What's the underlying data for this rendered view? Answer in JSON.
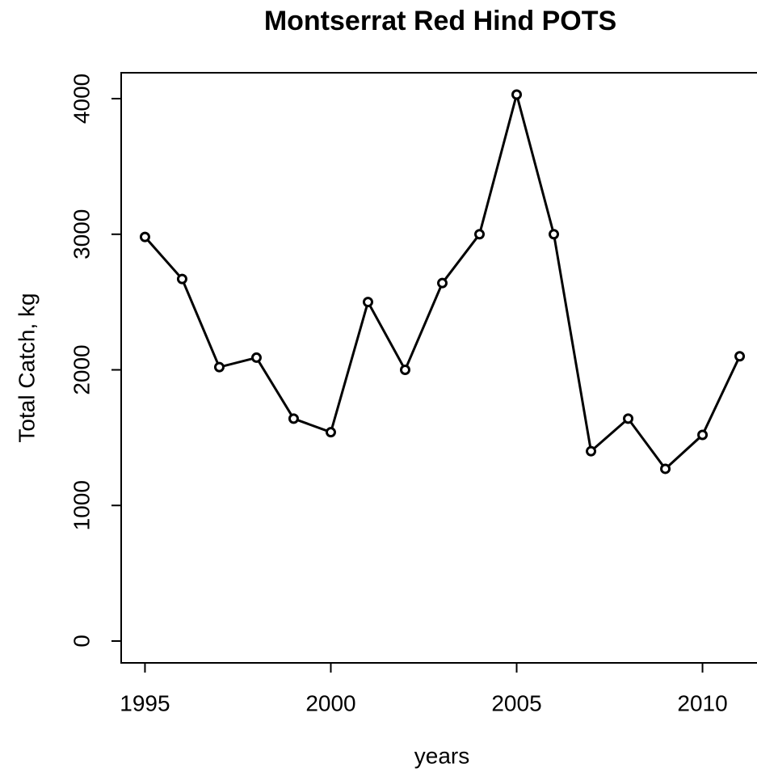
{
  "chart_data": {
    "type": "line",
    "title": "Montserrat Red Hind POTS",
    "x_label": "years",
    "y_label": "Total Catch, kg",
    "x": [
      1995,
      1996,
      1997,
      1998,
      1999,
      2000,
      2001,
      2002,
      2003,
      2004,
      2005,
      2006,
      2007,
      2008,
      2009,
      2010,
      2011
    ],
    "values": [
      2980,
      2670,
      2020,
      2090,
      1640,
      1540,
      2500,
      2000,
      2640,
      3000,
      4030,
      3000,
      1400,
      1640,
      1270,
      1520,
      2100
    ],
    "color": "#000000",
    "xlim": [
      1994.36,
      2011.64
    ],
    "xticks": [
      1995,
      2000,
      2005,
      2010
    ],
    "ylim": [
      -161,
      4191
    ],
    "yticks": [
      0,
      1000,
      2000,
      3000,
      4000
    ]
  }
}
